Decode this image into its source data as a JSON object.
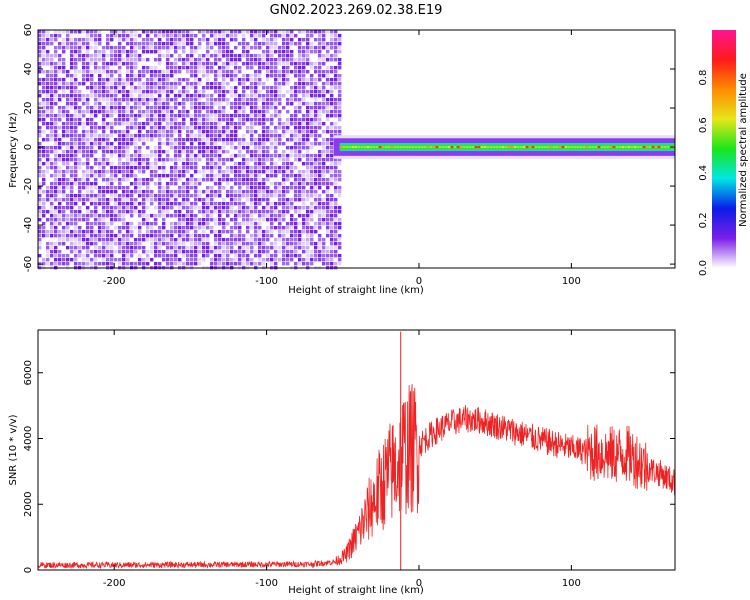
{
  "title": "GN02.2023.269.02.38.E19",
  "chart_data": [
    {
      "type": "heatmap",
      "xlabel": "Height of straight line (km)",
      "ylabel": "Frequency (Hz)",
      "xlim": [
        -250,
        168
      ],
      "ylim": [
        -62,
        60
      ],
      "xticks": [
        -200,
        -100,
        0,
        100
      ],
      "xtick_labels": [
        "-200",
        "-100",
        "0",
        "100"
      ],
      "yticks": [
        -60,
        -40,
        -20,
        0,
        20,
        40,
        60
      ],
      "ytick_labels": [
        "-60",
        "-40",
        "-20",
        "0",
        "20",
        "40",
        "60"
      ],
      "noise_region_x": [
        -250,
        -52
      ],
      "signal_band_hz": [
        -4,
        4
      ],
      "colorbar": {
        "label": "Normalized spectral amplitude",
        "range": [
          0,
          1
        ],
        "ticks": [
          0.0,
          0.2,
          0.4,
          0.6,
          0.8
        ],
        "tick_labels": [
          "0.0",
          "0.2",
          "0.4",
          "0.6",
          "0.8"
        ],
        "colormap": [
          "#ffffff",
          "#7a1fe8",
          "#0a1ce8",
          "#00e6e6",
          "#19e619",
          "#e6e619",
          "#ff8c00",
          "#ff1a1a",
          "#ff1493"
        ]
      }
    },
    {
      "type": "line",
      "xlabel": "Height of straight line (km)",
      "ylabel": "SNR (10 * v/v)",
      "xlim": [
        -250,
        168
      ],
      "ylim": [
        0,
        7300
      ],
      "xticks": [
        -200,
        -100,
        0,
        100
      ],
      "xtick_labels": [
        "-200",
        "-100",
        "0",
        "100"
      ],
      "yticks": [
        0,
        2000,
        4000,
        6000
      ],
      "ytick_labels": [
        "0",
        "2000",
        "4000",
        "6000"
      ],
      "color": "#ee2222",
      "x": [
        -250,
        -200,
        -150,
        -100,
        -70,
        -55,
        -48,
        -45,
        -40,
        -35,
        -30,
        -25,
        -20,
        -15,
        -12,
        -10,
        -5,
        0,
        10,
        20,
        30,
        40,
        50,
        60,
        80,
        100,
        110,
        120,
        125,
        130,
        135,
        140,
        145,
        150,
        160,
        168
      ],
      "y": [
        150,
        150,
        160,
        170,
        180,
        250,
        450,
        700,
        1100,
        1600,
        2100,
        2500,
        2900,
        3100,
        3400,
        3600,
        3700,
        3800,
        4200,
        4450,
        4600,
        4550,
        4400,
        4250,
        3950,
        3700,
        3600,
        3550,
        3500,
        3500,
        3550,
        3450,
        3300,
        3100,
        2900,
        2650
      ],
      "spikes": [
        {
          "x": -12,
          "y": 7250
        }
      ]
    }
  ]
}
